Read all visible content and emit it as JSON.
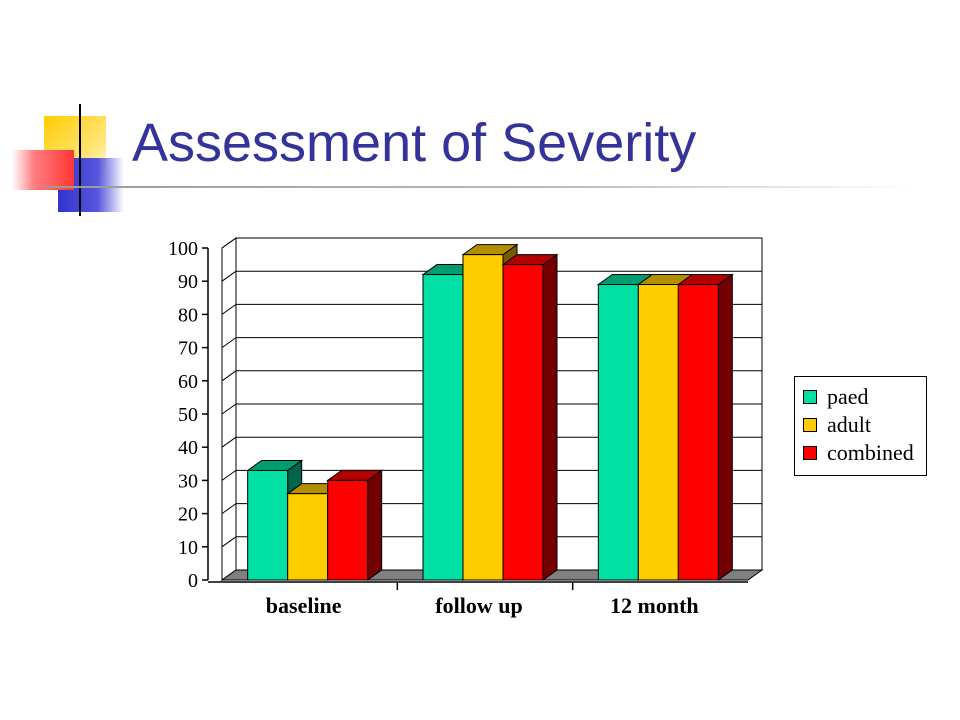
{
  "slide": {
    "title": "Assessment of Severity",
    "decor_colors": {
      "yellow": "#FFCC00",
      "blue": "#3333CC",
      "red": "#FF3333"
    }
  },
  "chart_data": {
    "type": "bar",
    "categories": [
      "baseline",
      "follow up",
      "12 month"
    ],
    "series": [
      {
        "name": "paed",
        "values": [
          33,
          92,
          89
        ],
        "color": "#00E0A4"
      },
      {
        "name": "adult",
        "values": [
          26,
          98,
          89
        ],
        "color": "#FFCC00"
      },
      {
        "name": "combined",
        "values": [
          30,
          95,
          89
        ],
        "color": "#FF0000"
      }
    ],
    "title": "",
    "xlabel": "",
    "ylabel": "",
    "ylim": [
      0,
      100
    ],
    "yticks": [
      0,
      10,
      20,
      30,
      40,
      50,
      60,
      70,
      80,
      90,
      100
    ],
    "grid": true,
    "legend_position": "right",
    "style": "3d-bars"
  }
}
